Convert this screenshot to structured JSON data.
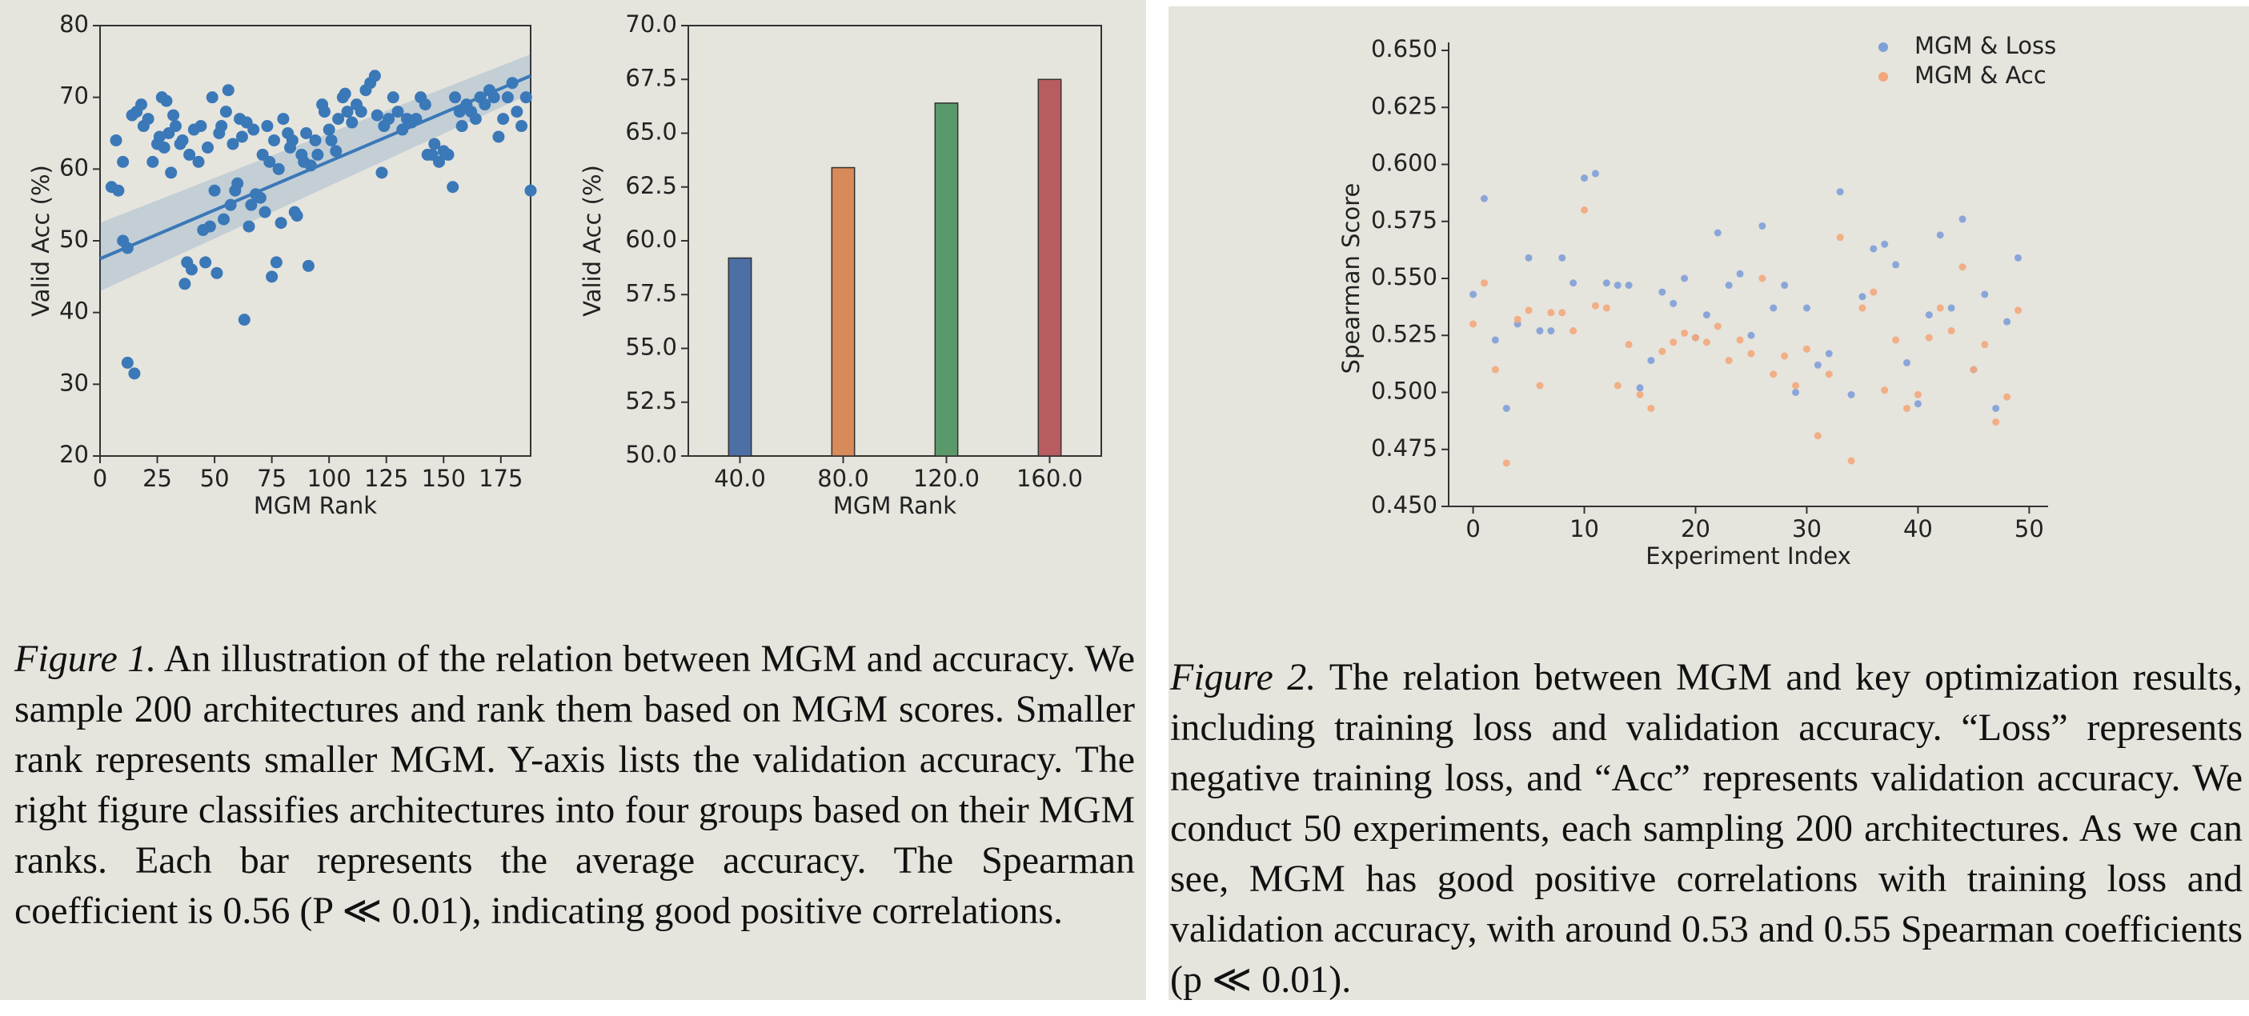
{
  "chart_data": [
    {
      "type": "scatter",
      "x": [
        5,
        8,
        10,
        12,
        15,
        7,
        10,
        12,
        14,
        16,
        18,
        19,
        21,
        23,
        25,
        26,
        27,
        28,
        29,
        30,
        31,
        32,
        33,
        35,
        36,
        37,
        38,
        39,
        40,
        41,
        43,
        44,
        45,
        46,
        47,
        48,
        49,
        50,
        51,
        52,
        53,
        54,
        55,
        56,
        57,
        58,
        59,
        60,
        61,
        62,
        63,
        64,
        65,
        66,
        67,
        68,
        70,
        71,
        72,
        73,
        74,
        75,
        76,
        77,
        78,
        79,
        80,
        82,
        83,
        84,
        85,
        86,
        88,
        89,
        90,
        91,
        92,
        94,
        95,
        97,
        98,
        100,
        101,
        103,
        104,
        106,
        107,
        108,
        110,
        112,
        114,
        116,
        118,
        120,
        121,
        123,
        124,
        126,
        128,
        130,
        132,
        134,
        136,
        138,
        140,
        142,
        143,
        145,
        146,
        148,
        150,
        152,
        154,
        155,
        157,
        158,
        160,
        162,
        164,
        166,
        168,
        170,
        172,
        174,
        176,
        178,
        180,
        182,
        184,
        186,
        188
      ],
      "values": [
        57.5,
        57,
        50,
        33,
        31.5,
        64,
        61,
        49,
        67.5,
        68,
        69,
        66,
        67,
        61,
        63.5,
        64.5,
        70,
        63,
        69.5,
        65,
        59.5,
        67.5,
        66,
        63.5,
        64,
        44,
        47,
        62,
        46,
        65.5,
        61,
        66,
        51.5,
        47,
        63,
        52,
        70,
        57,
        45.5,
        65,
        66,
        53,
        68,
        71,
        55,
        63.5,
        57,
        58,
        67,
        64.5,
        39,
        66.5,
        52,
        55,
        65.5,
        56.5,
        56,
        62,
        54,
        66,
        61,
        45,
        64,
        47,
        60,
        52.5,
        67,
        65,
        63,
        64,
        54,
        53.5,
        62,
        61,
        65,
        46.5,
        60.5,
        64,
        62,
        69,
        68,
        65.5,
        64,
        62.5,
        67,
        70,
        70.5,
        68,
        66.5,
        69,
        68,
        71,
        72,
        73,
        67.5,
        59.5,
        66,
        67,
        70,
        68,
        65.5,
        67,
        66.5,
        67,
        70,
        69,
        62,
        62,
        63.5,
        61,
        62.5,
        62,
        57.5,
        70,
        68,
        66,
        69,
        68,
        67,
        70,
        69,
        71,
        70,
        64.5,
        67,
        70,
        72,
        68,
        66,
        70,
        57
      ],
      "color": "#3a78b8",
      "fit": {
        "x": [
          0,
          188
        ],
        "values": [
          47.5,
          73
        ],
        "lower": [
          43,
          70.5
        ],
        "upper": [
          52.5,
          76
        ]
      },
      "xlabel": "MGM Rank",
      "ylabel": "Valid Acc (%)",
      "xlim": [
        0,
        188
      ],
      "ylim": [
        20,
        80
      ],
      "xticks": [
        0,
        25,
        50,
        75,
        100,
        125,
        150,
        175
      ],
      "yticks": [
        20,
        30,
        40,
        50,
        60,
        70,
        80
      ]
    },
    {
      "type": "bar",
      "categories": [
        "40.0",
        "80.0",
        "120.0",
        "160.0"
      ],
      "values": [
        59.2,
        63.4,
        66.4,
        67.5
      ],
      "colors": [
        "#4c6fa5",
        "#d88a5a",
        "#5a9a6a",
        "#b85c60"
      ],
      "xlabel": "MGM Rank",
      "ylabel": "Valid Acc (%)",
      "ylim": [
        50,
        70
      ],
      "yticks": [
        {
          "value": 50,
          "label": "50.0"
        },
        {
          "value": 52.5,
          "label": "52.5"
        },
        {
          "value": 55,
          "label": "55.0"
        },
        {
          "value": 57.5,
          "label": "57.5"
        },
        {
          "value": 60,
          "label": "60.0"
        },
        {
          "value": 62.5,
          "label": "62.5"
        },
        {
          "value": 65,
          "label": "65.0"
        },
        {
          "value": 67.5,
          "label": "67.5"
        },
        {
          "value": 70,
          "label": "70.0"
        }
      ]
    },
    {
      "type": "scatter",
      "x": [
        0,
        1,
        2,
        3,
        4,
        5,
        6,
        7,
        8,
        9,
        10,
        11,
        12,
        13,
        14,
        15,
        16,
        17,
        18,
        19,
        20,
        21,
        22,
        23,
        24,
        25,
        26,
        27,
        28,
        29,
        30,
        31,
        32,
        33,
        34,
        35,
        36,
        37,
        38,
        39,
        40,
        41,
        42,
        43,
        44,
        45,
        46,
        47,
        48,
        49
      ],
      "series": [
        {
          "name": "MGM & Loss",
          "color": "#7f9fd8",
          "values": [
            0.543,
            0.585,
            0.523,
            0.493,
            0.53,
            0.559,
            0.527,
            0.527,
            0.559,
            0.548,
            0.594,
            0.596,
            0.548,
            0.547,
            0.547,
            0.502,
            0.514,
            0.544,
            0.539,
            0.55,
            0.524,
            0.534,
            0.57,
            0.547,
            0.552,
            0.525,
            0.573,
            0.537,
            0.547,
            0.5,
            0.537,
            0.512,
            0.517,
            0.588,
            0.499,
            0.542,
            0.563,
            0.565,
            0.556,
            0.513,
            0.495,
            0.534,
            0.569,
            0.537,
            0.576,
            0.51,
            0.543,
            0.493,
            0.531,
            0.559
          ]
        },
        {
          "name": "MGM & Acc",
          "color": "#f3a77a",
          "values": [
            0.53,
            0.548,
            0.51,
            0.469,
            0.532,
            0.536,
            0.503,
            0.535,
            0.535,
            0.527,
            0.58,
            0.538,
            0.537,
            0.503,
            0.521,
            0.499,
            0.493,
            0.518,
            0.522,
            0.526,
            0.524,
            0.522,
            0.529,
            0.514,
            0.523,
            0.517,
            0.55,
            0.508,
            0.516,
            0.503,
            0.519,
            0.481,
            0.508,
            0.568,
            0.47,
            0.537,
            0.544,
            0.501,
            0.523,
            0.493,
            0.499,
            0.524,
            0.537,
            0.527,
            0.555,
            0.51,
            0.521,
            0.487,
            0.498,
            0.536
          ]
        }
      ],
      "legend": "upper right",
      "xlabel": "Experiment Index",
      "ylabel": "Spearman Score",
      "xlim": [
        -2.2,
        51.7
      ],
      "ylim": [
        0.45,
        0.65
      ],
      "xticks": [
        0,
        10,
        20,
        30,
        40,
        50
      ],
      "yticks": [
        {
          "value": 0.45,
          "label": "0.450"
        },
        {
          "value": 0.475,
          "label": "0.475"
        },
        {
          "value": 0.5,
          "label": "0.500"
        },
        {
          "value": 0.525,
          "label": "0.525"
        },
        {
          "value": 0.55,
          "label": "0.550"
        },
        {
          "value": 0.575,
          "label": "0.575"
        },
        {
          "value": 0.6,
          "label": "0.600"
        },
        {
          "value": 0.625,
          "label": "0.625"
        },
        {
          "value": 0.65,
          "label": "0.650"
        }
      ]
    }
  ],
  "captions": [
    {
      "label": "Figure 1.",
      "text": "An illustration of the relation between MGM and accuracy. We sample 200 architectures and rank them based on MGM scores. Smaller rank represents smaller MGM. Y-axis lists the validation accuracy. The right figure classifies architectures into four groups based on their MGM ranks. Each bar represents the average accuracy. The Spearman coefficient is 0.56 (P ≪ 0.01), indicating good positive correlations."
    },
    {
      "label": "Figure 2.",
      "text": "The relation between MGM and key optimization results, including training loss and validation accuracy. “Loss” represents negative training loss, and “Acc” represents validation accuracy. We conduct 50 experiments, each sampling 200 architectures. As we can see, MGM has good positive correlations with training loss and validation accuracy, with around 0.53 and 0.55 Spearman coefficients (p ≪ 0.01)."
    }
  ]
}
